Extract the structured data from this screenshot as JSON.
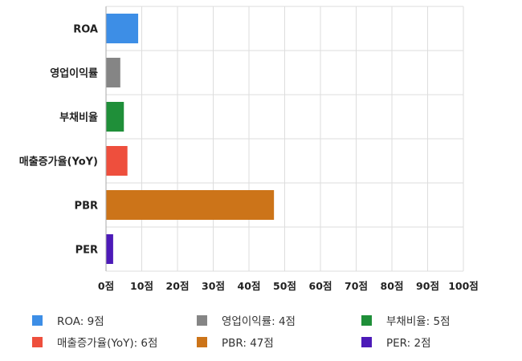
{
  "chart_data": {
    "type": "bar",
    "orientation": "horizontal",
    "categories": [
      "ROA",
      "영업이익률",
      "부채비율",
      "매출증가율(YoY)",
      "PBR",
      "PER"
    ],
    "values": [
      9,
      4,
      5,
      6,
      47,
      2
    ],
    "colors": [
      "#3d8ee6",
      "#858585",
      "#1f8f39",
      "#ee4f3d",
      "#cc7419",
      "#4c1ab8"
    ],
    "xlim": [
      0,
      100
    ],
    "xticks": [
      0,
      10,
      20,
      30,
      40,
      50,
      60,
      70,
      80,
      90,
      100
    ],
    "xtick_labels": [
      "0점",
      "10점",
      "20점",
      "30점",
      "40점",
      "50점",
      "60점",
      "70점",
      "80점",
      "90점",
      "100점"
    ],
    "grid": true,
    "legend_position": "bottom",
    "legend": [
      {
        "label": "ROA: 9점",
        "color": "#3d8ee6"
      },
      {
        "label": "영업이익률: 4점",
        "color": "#858585"
      },
      {
        "label": "부채비율: 5점",
        "color": "#1f8f39"
      },
      {
        "label": "매출증가율(YoY): 6점",
        "color": "#ee4f3d"
      },
      {
        "label": "PBR: 47점",
        "color": "#cc7419"
      },
      {
        "label": "PER: 2점",
        "color": "#4c1ab8"
      }
    ]
  }
}
